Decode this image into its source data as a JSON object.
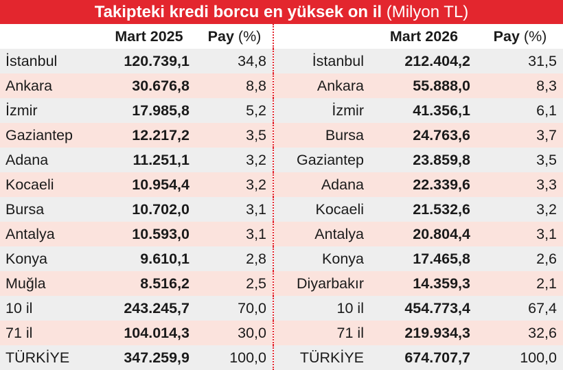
{
  "title": {
    "bold": "Takipteki kredi borcu en yüksek on il",
    "unit": "(Milyon TL)"
  },
  "header": {
    "left_period": "Mart 2025",
    "right_period": "Mart 2026",
    "pay_label": "Pay",
    "pay_unit": "(%)"
  },
  "rows": [
    {
      "l_name": "İstanbul",
      "l_value": "120.739,1",
      "l_pay": "34,8",
      "r_name": "İstanbul",
      "r_value": "212.404,2",
      "r_pay": "31,5"
    },
    {
      "l_name": "Ankara",
      "l_value": "30.676,8",
      "l_pay": "8,8",
      "r_name": "Ankara",
      "r_value": "55.888,0",
      "r_pay": "8,3"
    },
    {
      "l_name": "İzmir",
      "l_value": "17.985,8",
      "l_pay": "5,2",
      "r_name": "İzmir",
      "r_value": "41.356,1",
      "r_pay": "6,1"
    },
    {
      "l_name": "Gaziantep",
      "l_value": "12.217,2",
      "l_pay": "3,5",
      "r_name": "Bursa",
      "r_value": "24.763,6",
      "r_pay": "3,7"
    },
    {
      "l_name": "Adana",
      "l_value": "11.251,1",
      "l_pay": "3,2",
      "r_name": "Gaziantep",
      "r_value": "23.859,8",
      "r_pay": "3,5"
    },
    {
      "l_name": "Kocaeli",
      "l_value": "10.954,4",
      "l_pay": "3,2",
      "r_name": "Adana",
      "r_value": "22.339,6",
      "r_pay": "3,3"
    },
    {
      "l_name": "Bursa",
      "l_value": "10.702,0",
      "l_pay": "3,1",
      "r_name": "Kocaeli",
      "r_value": "21.532,6",
      "r_pay": "3,2"
    },
    {
      "l_name": "Antalya",
      "l_value": "10.593,0",
      "l_pay": "3,1",
      "r_name": "Antalya",
      "r_value": "20.804,4",
      "r_pay": "3,1"
    },
    {
      "l_name": "Konya",
      "l_value": "9.610,1",
      "l_pay": "2,8",
      "r_name": "Konya",
      "r_value": "17.465,8",
      "r_pay": "2,6"
    },
    {
      "l_name": "Muğla",
      "l_value": "8.516,2",
      "l_pay": "2,5",
      "r_name": "Diyarbakır",
      "r_value": "14.359,3",
      "r_pay": "2,1"
    },
    {
      "l_name": "10 il",
      "l_value": "243.245,7",
      "l_pay": "70,0",
      "r_name": "10 il",
      "r_value": "454.773,4",
      "r_pay": "67,4"
    },
    {
      "l_name": "71 il",
      "l_value": "104.014,3",
      "l_pay": "30,0",
      "r_name": "71 il",
      "r_value": "219.934,3",
      "r_pay": "32,6"
    },
    {
      "l_name": "TÜRKİYE",
      "l_value": "347.259,9",
      "l_pay": "100,0",
      "r_name": "TÜRKİYE",
      "r_value": "674.707,7",
      "r_pay": "100,0"
    }
  ],
  "colors": {
    "accent_red": "#e3262e",
    "row_gray": "#eeeeee",
    "row_pink": "#fbe3dd"
  }
}
